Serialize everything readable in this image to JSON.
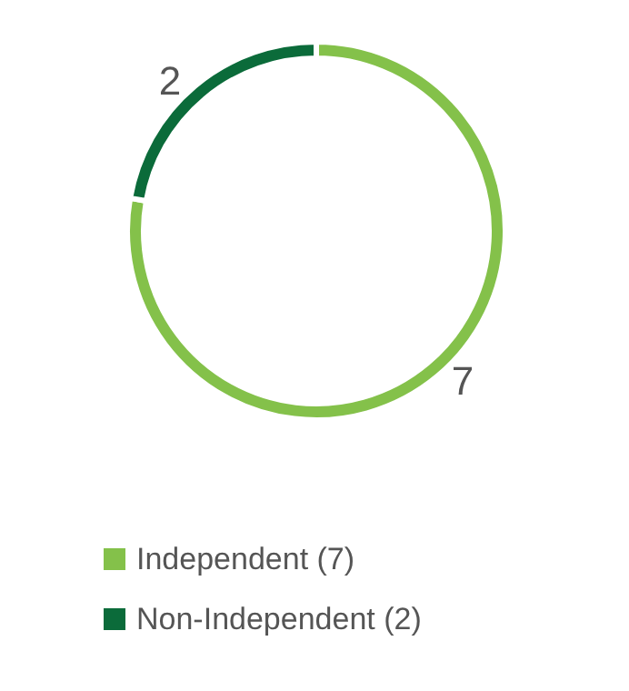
{
  "chart_data": {
    "type": "donut",
    "categories": [
      "Independent (7)",
      "Non-Independent (2)"
    ],
    "values": [
      7,
      2
    ],
    "colors": [
      "#84c14a",
      "#0b6b3a"
    ],
    "data_labels": true,
    "legend": "bottom"
  }
}
